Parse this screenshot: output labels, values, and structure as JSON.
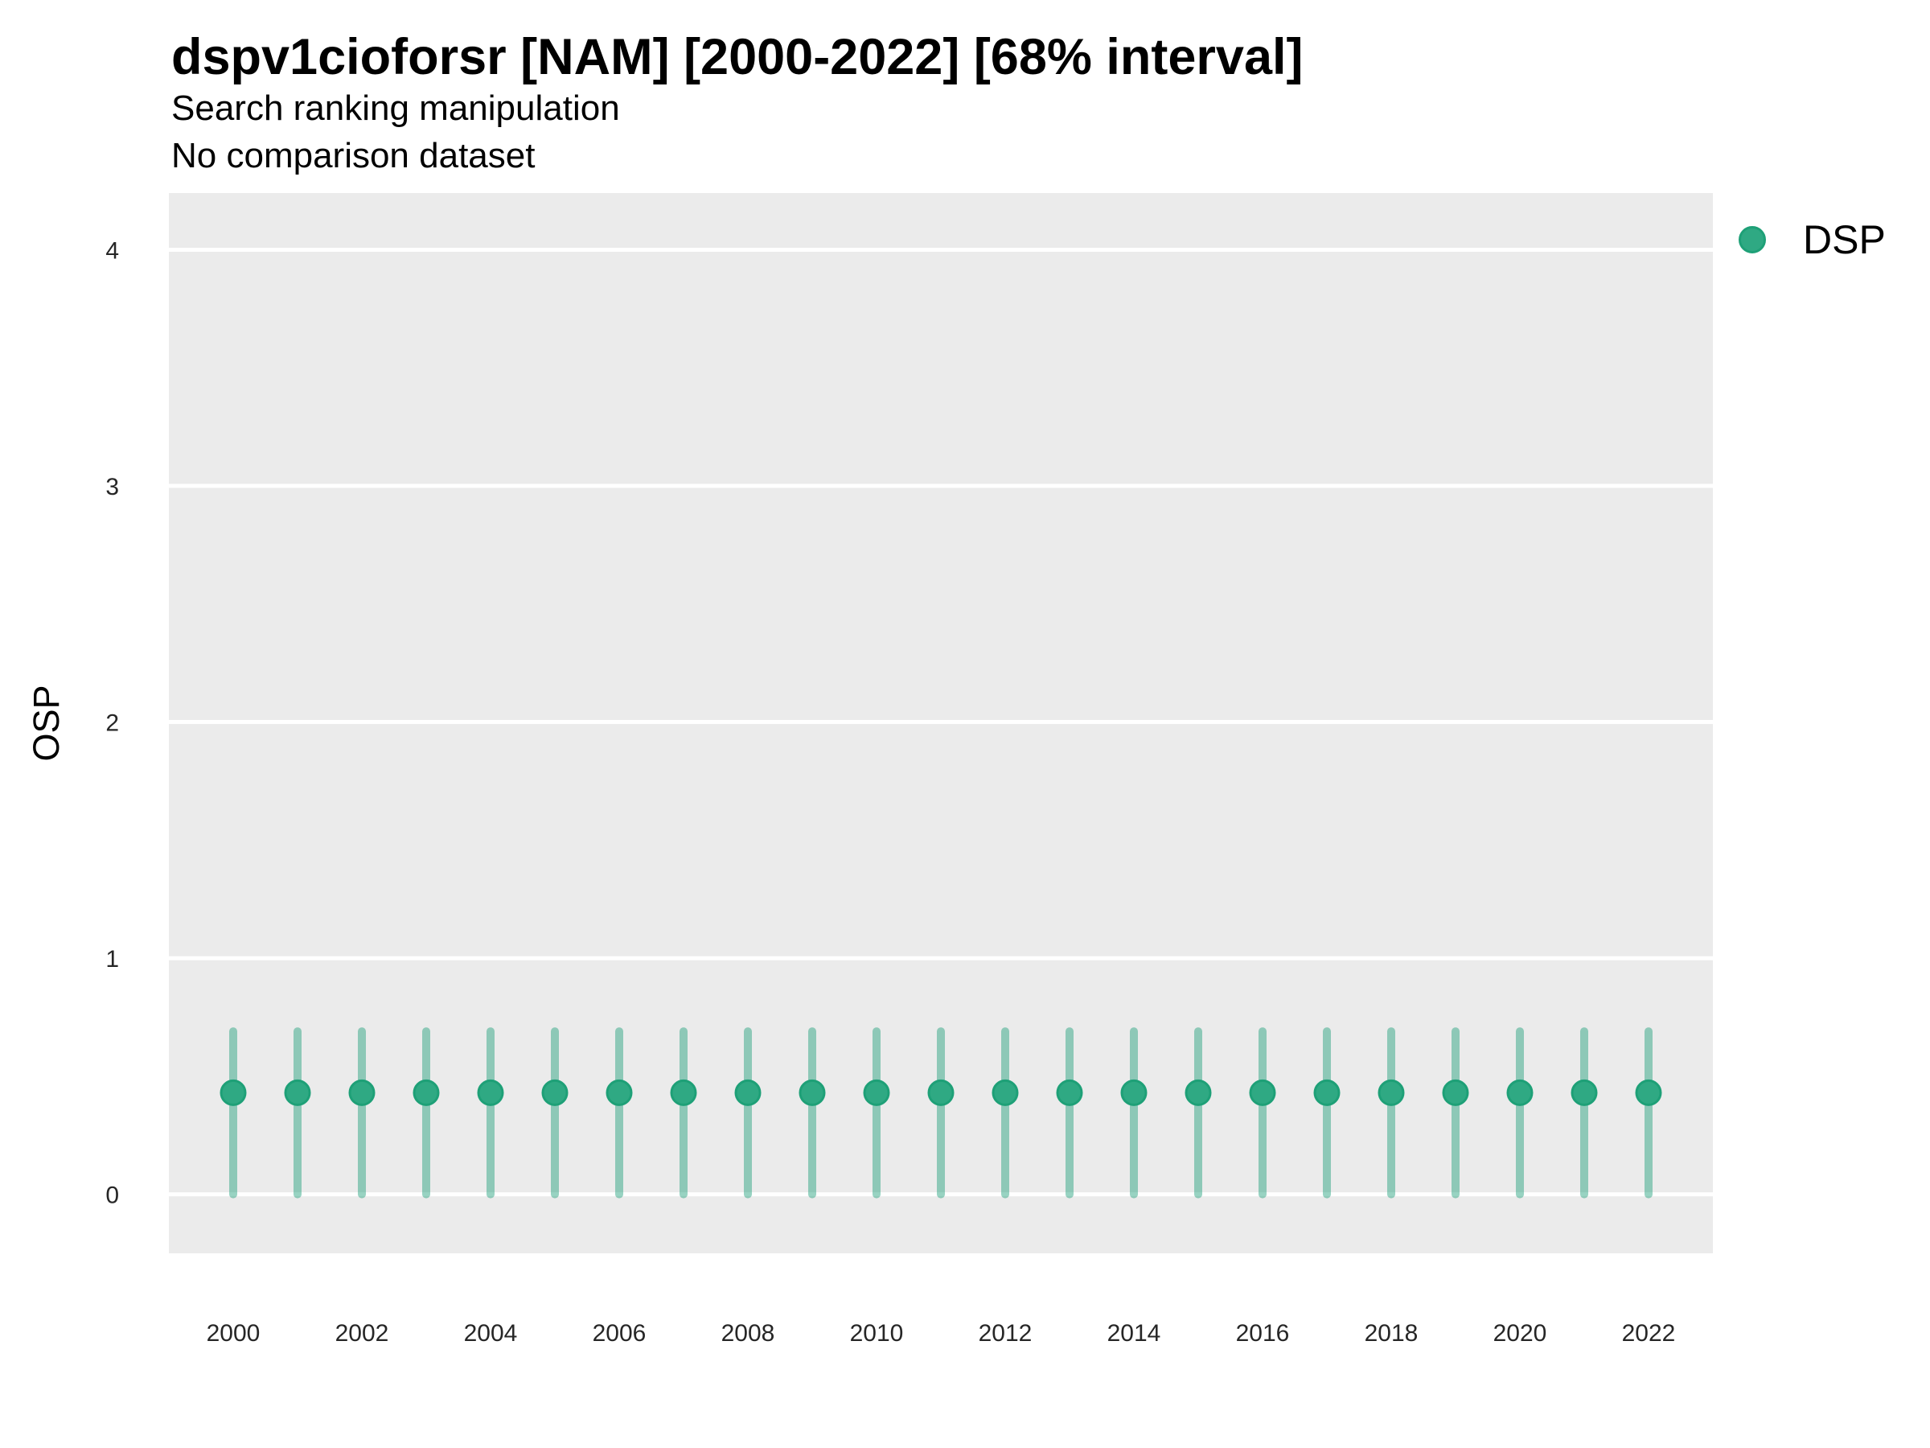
{
  "header": {
    "title": "dspv1cioforsr [NAM] [2000-2022] [68% interval]",
    "subtitle": "Search ranking manipulation",
    "caption": "No comparison dataset"
  },
  "axes": {
    "y_label": "OSP",
    "x_label": "",
    "y_ticks": [
      "0",
      "1",
      "2",
      "3",
      "4"
    ],
    "x_ticks": [
      "2000",
      "2002",
      "2004",
      "2006",
      "2008",
      "2010",
      "2012",
      "2014",
      "2016",
      "2018",
      "2020",
      "2022"
    ]
  },
  "legend": {
    "position": "right",
    "items": [
      {
        "label": "DSP",
        "marker": "circle"
      }
    ]
  },
  "colors": {
    "panel_background": "#ebebeb",
    "gridline": "#ffffff",
    "interval_line": "rgba(27,158,119,0.45)",
    "point_fill": "#2fa983",
    "point_stroke": "#1ea077",
    "tick_text": "#262626",
    "title_text": "#000000"
  },
  "chart_data": {
    "type": "scatter",
    "subtype": "pointrange",
    "title": "dspv1cioforsr [NAM] [2000-2022] [68% interval]",
    "subtitle": "Search ranking manipulation",
    "note": "No comparison dataset",
    "xlabel": "",
    "ylabel": "OSP",
    "xlim": [
      1999,
      2023
    ],
    "ylim": [
      -0.25,
      4.24
    ],
    "x_tick_values": [
      2000,
      2002,
      2004,
      2006,
      2008,
      2010,
      2012,
      2014,
      2016,
      2018,
      2020,
      2022
    ],
    "y_tick_values": [
      0,
      1,
      2,
      3,
      4
    ],
    "grid": "horizontal-major-only",
    "legend_position": "right",
    "interval_label": "68% interval",
    "series": [
      {
        "name": "DSP",
        "x": [
          2000,
          2001,
          2002,
          2003,
          2004,
          2005,
          2006,
          2007,
          2008,
          2009,
          2010,
          2011,
          2012,
          2013,
          2014,
          2015,
          2016,
          2017,
          2018,
          2019,
          2020,
          2021,
          2022
        ],
        "y": [
          0.43,
          0.43,
          0.43,
          0.43,
          0.43,
          0.43,
          0.43,
          0.43,
          0.43,
          0.43,
          0.43,
          0.43,
          0.43,
          0.43,
          0.43,
          0.43,
          0.43,
          0.43,
          0.43,
          0.43,
          0.43,
          0.43,
          0.43
        ],
        "y_low": [
          0.0,
          0.0,
          0.0,
          0.0,
          0.0,
          0.0,
          0.0,
          0.0,
          0.0,
          0.0,
          0.0,
          0.0,
          0.0,
          0.0,
          0.0,
          0.0,
          0.0,
          0.0,
          0.0,
          0.0,
          0.0,
          0.0,
          0.0
        ],
        "y_high": [
          0.69,
          0.69,
          0.69,
          0.69,
          0.69,
          0.69,
          0.69,
          0.69,
          0.69,
          0.69,
          0.69,
          0.69,
          0.69,
          0.69,
          0.69,
          0.69,
          0.69,
          0.69,
          0.69,
          0.69,
          0.69,
          0.69,
          0.69
        ]
      }
    ]
  }
}
